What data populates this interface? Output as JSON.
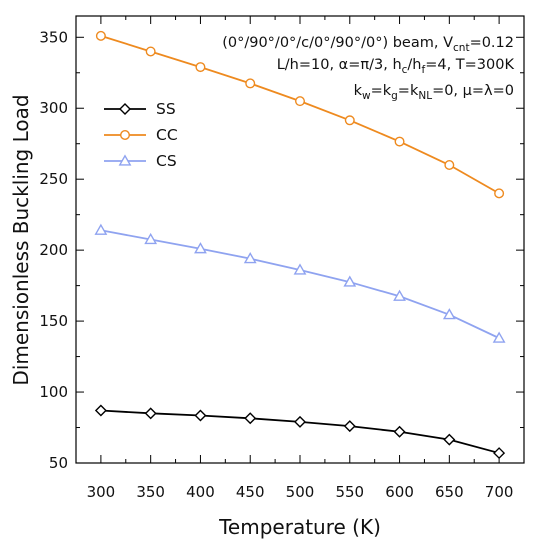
{
  "chart_data": {
    "type": "line",
    "title": "",
    "xlabel": "Temperature (K)",
    "ylabel": "Dimensionless Buckling Load",
    "xlim": [
      275,
      725
    ],
    "ylim": [
      50,
      365
    ],
    "x_ticks": [
      300,
      350,
      400,
      450,
      500,
      550,
      600,
      650,
      700
    ],
    "y_ticks": [
      50,
      100,
      150,
      200,
      250,
      300,
      350
    ],
    "grid": false,
    "legend_position": "top-left",
    "annotations": [
      "(0°/90°/0°/c/0°/90°/0°) beam, V_cnt=0.12",
      "L/h=10, α=π/3, h_c/h_f=4, T=300K",
      "k_w=k_g=k_NL=0, μ=λ=0"
    ],
    "x": [
      300,
      350,
      400,
      450,
      500,
      550,
      600,
      650,
      700
    ],
    "series": [
      {
        "name": "SS",
        "color": "#000000",
        "marker": "diamond",
        "values": [
          87,
          85,
          83.5,
          81.5,
          79,
          76,
          72,
          66.5,
          57
        ]
      },
      {
        "name": "CC",
        "color": "#ee8a1f",
        "marker": "circle",
        "values": [
          351,
          340,
          329,
          317.5,
          305,
          291.5,
          276.5,
          260,
          240
        ]
      },
      {
        "name": "CS",
        "color": "#8fa3f0",
        "marker": "triangle",
        "values": [
          214,
          207.5,
          201,
          194,
          186,
          177.5,
          167.5,
          154.5,
          138
        ]
      }
    ]
  },
  "annotation_parts": {
    "line1_main": "(0°/90°/0°/c/0°/90°/0°) beam, V",
    "line1_sub": "cnt",
    "line1_end": "=0.12",
    "line2_a": "L/h=10, α=π/3, h",
    "line2_sub1": "c",
    "line2_b": "/h",
    "line2_sub2": "f",
    "line2_c": "=4, T=300K",
    "line3_a": "k",
    "line3_sub1": "w",
    "line3_b": "=k",
    "line3_sub2": "g",
    "line3_c": "=k",
    "line3_sub3": "NL",
    "line3_d": "=0, μ=λ=0"
  }
}
